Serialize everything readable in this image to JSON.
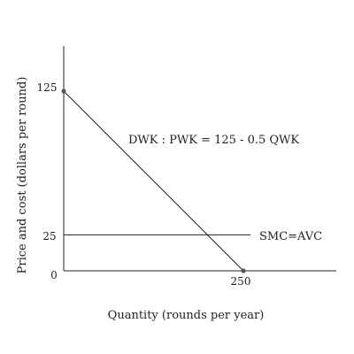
{
  "chart_data": {
    "type": "line",
    "title": "",
    "xlabel": "Quantity (rounds per year)",
    "ylabel": "Price and cost (dollars per round)",
    "xlim": [
      0,
      305
    ],
    "ylim": [
      0,
      145
    ],
    "grid": false,
    "x_ticks": [
      {
        "value": 250,
        "label": "250"
      }
    ],
    "y_ticks": [
      {
        "value": 0,
        "label": "0"
      },
      {
        "value": 25,
        "label": "25"
      },
      {
        "value": 125,
        "label": "125"
      }
    ],
    "series": [
      {
        "name": "DWK : PWK = 125 - 0.5 QWK",
        "color": "#222222",
        "markers": true,
        "points": [
          [
            0,
            125
          ],
          [
            250,
            0
          ]
        ]
      },
      {
        "name": "SMC=AVC",
        "color": "#222222",
        "markers": false,
        "points": [
          [
            0,
            25
          ],
          [
            260,
            25
          ]
        ]
      }
    ],
    "annotations": [
      {
        "text": "DWK : PWK = 125 - 0.5 QWK",
        "x": 90,
        "y": 100,
        "series": 0
      },
      {
        "text": "SMC=AVC",
        "x": 268,
        "y": 25,
        "series": 1
      }
    ]
  }
}
